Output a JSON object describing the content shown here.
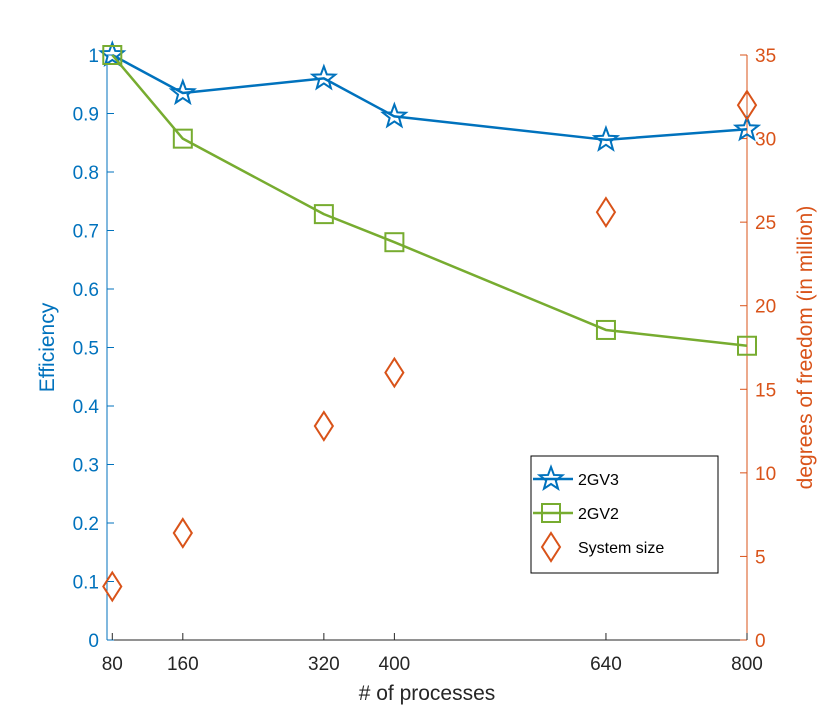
{
  "chart_data": {
    "type": "line",
    "xlabel": "# of processes",
    "ylabel_left": "Efficiency",
    "ylabel_right": "degrees of freedom (in million)",
    "x": [
      80,
      160,
      320,
      400,
      640,
      800
    ],
    "xticks": [
      "80",
      "160",
      "320",
      "400",
      "640",
      "800"
    ],
    "xlim": [
      74,
      800
    ],
    "ylim_left": [
      0,
      1
    ],
    "yticks_left": [
      "0",
      "0.1",
      "0.2",
      "0.3",
      "0.4",
      "0.5",
      "0.6",
      "0.7",
      "0.8",
      "0.9",
      "1"
    ],
    "ylim_right": [
      0,
      35
    ],
    "yticks_right": [
      "0",
      "5",
      "10",
      "15",
      "20",
      "25",
      "30",
      "35"
    ],
    "grid": false,
    "legend_position": "lower-right",
    "series": [
      {
        "name": "2GV3",
        "axis": "left",
        "marker": "star",
        "color": "#0072BD",
        "values": [
          1.0,
          0.935,
          0.96,
          0.895,
          0.855,
          0.873
        ]
      },
      {
        "name": "2GV2",
        "axis": "left",
        "marker": "square",
        "color": "#77AC30",
        "values": [
          1.0,
          0.857,
          0.728,
          0.68,
          0.53,
          0.503
        ]
      },
      {
        "name": "System size",
        "axis": "right",
        "marker": "diamond",
        "color": "#D95319",
        "line": false,
        "values": [
          3.2,
          6.4,
          12.8,
          16.0,
          25.6,
          32.0
        ]
      }
    ]
  }
}
